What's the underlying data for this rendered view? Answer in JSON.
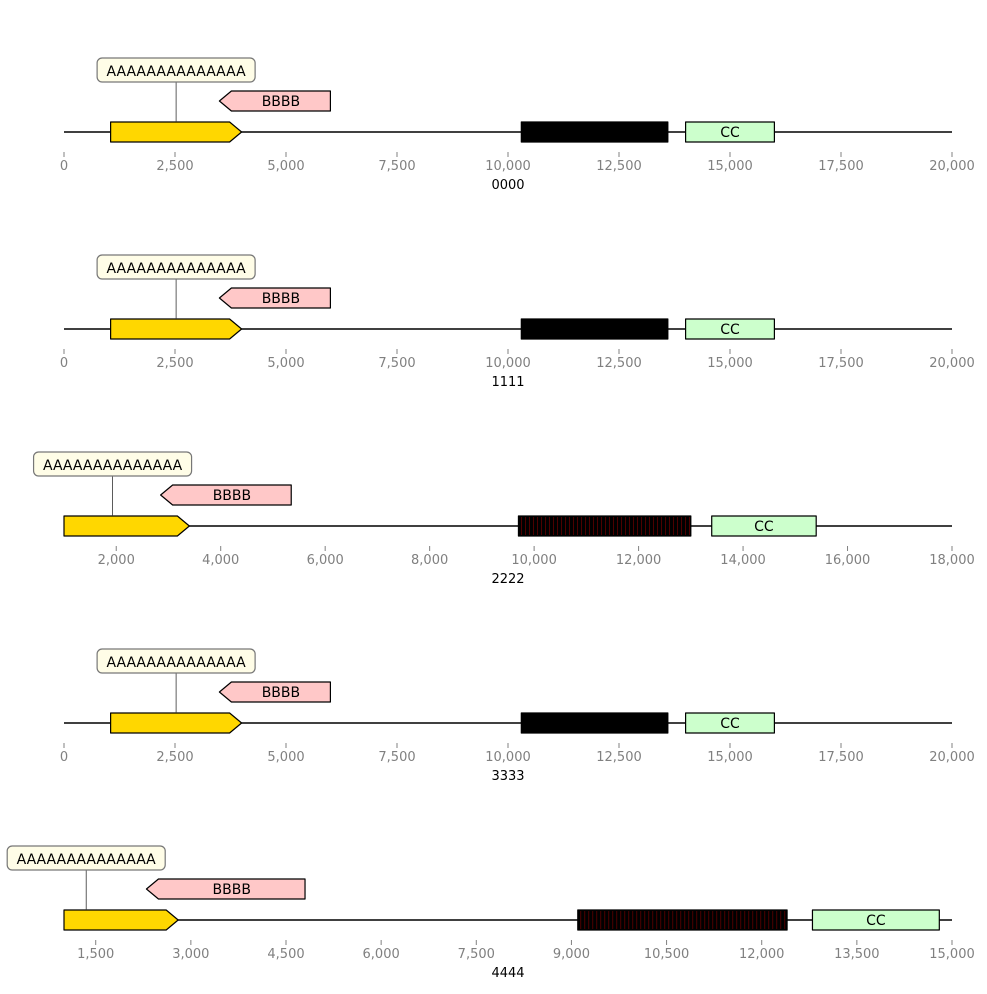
{
  "colors": {
    "feature_a": "#FFD700",
    "feature_b": "#FFC8C8",
    "feature_c": "#CCFFCC",
    "dense_block": "#000000",
    "dense_block_stripe": "#8B0000",
    "annotation_box": "#FFFDE7",
    "axis_tick_label": "#808080"
  },
  "tracks": [
    {
      "title": "0000",
      "xlim": [
        0,
        20000
      ],
      "ticks": [
        0,
        2500,
        5000,
        7500,
        10000,
        12500,
        15000,
        17500,
        20000
      ],
      "tick_labels": [
        "0",
        "2,500",
        "5,000",
        "7,500",
        "10,000",
        "12,500",
        "15,000",
        "17,500",
        "20,000"
      ],
      "features": [
        {
          "label": "",
          "start": 1050,
          "end": 4000,
          "strand": 1,
          "color": "#FFD700"
        },
        {
          "label": "BBBB",
          "start": 3500,
          "end": 6000,
          "strand": -1,
          "color": "#FFC8C8"
        },
        {
          "label": "",
          "start": 10300,
          "end": 13600,
          "strand": 0,
          "color": "#000000",
          "striped": false
        },
        {
          "label": "CC",
          "start": 14000,
          "end": 16000,
          "strand": 0,
          "color": "#CCFFCC"
        }
      ],
      "annotation": {
        "text": "AAAAAAAAAAAAAA",
        "position": 2525
      }
    },
    {
      "title": "1111",
      "xlim": [
        0,
        20000
      ],
      "ticks": [
        0,
        2500,
        5000,
        7500,
        10000,
        12500,
        15000,
        17500,
        20000
      ],
      "tick_labels": [
        "0",
        "2,500",
        "5,000",
        "7,500",
        "10,000",
        "12,500",
        "15,000",
        "17,500",
        "20,000"
      ],
      "features": [
        {
          "label": "",
          "start": 1050,
          "end": 4000,
          "strand": 1,
          "color": "#FFD700"
        },
        {
          "label": "BBBB",
          "start": 3500,
          "end": 6000,
          "strand": -1,
          "color": "#FFC8C8"
        },
        {
          "label": "",
          "start": 10300,
          "end": 13600,
          "strand": 0,
          "color": "#000000",
          "striped": false
        },
        {
          "label": "CC",
          "start": 14000,
          "end": 16000,
          "strand": 0,
          "color": "#CCFFCC"
        }
      ],
      "annotation": {
        "text": "AAAAAAAAAAAAAA",
        "position": 2525
      }
    },
    {
      "title": "2222",
      "xlim": [
        1000,
        18000
      ],
      "ticks": [
        2000,
        4000,
        6000,
        8000,
        10000,
        12000,
        14000,
        16000,
        18000
      ],
      "tick_labels": [
        "2,000",
        "4,000",
        "6,000",
        "8,000",
        "10,000",
        "12,000",
        "14,000",
        "16,000",
        "18,000"
      ],
      "features": [
        {
          "label": "",
          "start": 1000,
          "end": 3400,
          "strand": 1,
          "color": "#FFD700"
        },
        {
          "label": "BBBB",
          "start": 2850,
          "end": 5350,
          "strand": -1,
          "color": "#FFC8C8"
        },
        {
          "label": "",
          "start": 9700,
          "end": 13000,
          "strand": 0,
          "color": "#000000",
          "striped": true
        },
        {
          "label": "CC",
          "start": 13400,
          "end": 15400,
          "strand": 0,
          "color": "#CCFFCC"
        }
      ],
      "annotation": {
        "text": "AAAAAAAAAAAAAA",
        "position": 1930
      }
    },
    {
      "title": "3333",
      "xlim": [
        0,
        20000
      ],
      "ticks": [
        0,
        2500,
        5000,
        7500,
        10000,
        12500,
        15000,
        17500,
        20000
      ],
      "tick_labels": [
        "0",
        "2,500",
        "5,000",
        "7,500",
        "10,000",
        "12,500",
        "15,000",
        "17,500",
        "20,000"
      ],
      "features": [
        {
          "label": "",
          "start": 1050,
          "end": 4000,
          "strand": 1,
          "color": "#FFD700"
        },
        {
          "label": "BBBB",
          "start": 3500,
          "end": 6000,
          "strand": -1,
          "color": "#FFC8C8"
        },
        {
          "label": "",
          "start": 10300,
          "end": 13600,
          "strand": 0,
          "color": "#000000",
          "striped": false
        },
        {
          "label": "CC",
          "start": 14000,
          "end": 16000,
          "strand": 0,
          "color": "#CCFFCC"
        }
      ],
      "annotation": {
        "text": "AAAAAAAAAAAAAA",
        "position": 2525
      }
    },
    {
      "title": "4444",
      "xlim": [
        1000,
        15000
      ],
      "ticks": [
        1500,
        3000,
        4500,
        6000,
        7500,
        9000,
        10500,
        12000,
        13500,
        15000
      ],
      "tick_labels": [
        "1,500",
        "3,000",
        "4,500",
        "6,000",
        "7,500",
        "9,000",
        "10,500",
        "12,000",
        "13,500",
        "15,000"
      ],
      "features": [
        {
          "label": "",
          "start": 1000,
          "end": 2800,
          "strand": 1,
          "color": "#FFD700"
        },
        {
          "label": "BBBB",
          "start": 2300,
          "end": 4800,
          "strand": -1,
          "color": "#FFC8C8"
        },
        {
          "label": "",
          "start": 9100,
          "end": 12400,
          "strand": 0,
          "color": "#000000",
          "striped": true
        },
        {
          "label": "CC",
          "start": 12800,
          "end": 14800,
          "strand": 0,
          "color": "#CCFFCC"
        }
      ],
      "annotation": {
        "text": "AAAAAAAAAAAAAA",
        "position": 1350
      }
    }
  ]
}
